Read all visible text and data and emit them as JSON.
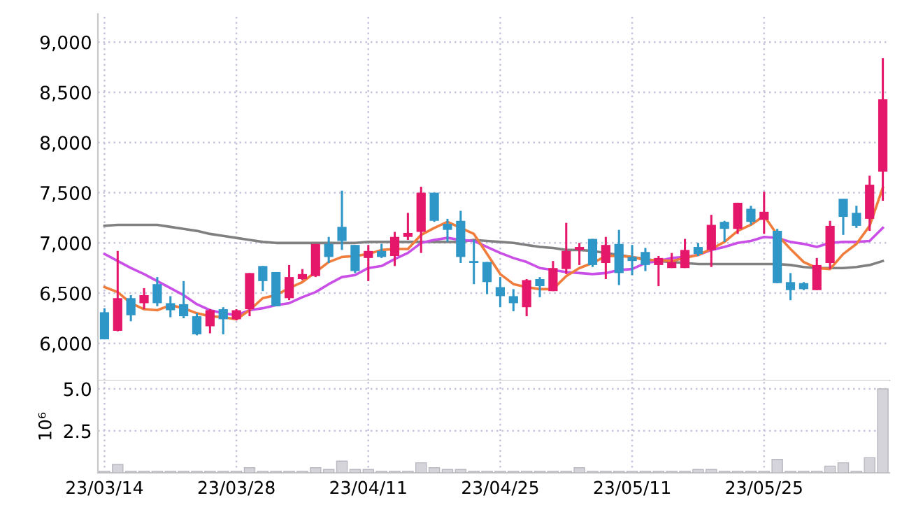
{
  "chart_data": [
    {
      "type": "candlestick",
      "ohlc": [
        [
          6310,
          6350,
          6040,
          6040
        ],
        [
          6125,
          6920,
          6120,
          6450
        ],
        [
          6450,
          6480,
          6220,
          6280
        ],
        [
          6400,
          6550,
          6340,
          6480
        ],
        [
          6590,
          6660,
          6370,
          6400
        ],
        [
          6400,
          6470,
          6260,
          6330
        ],
        [
          6390,
          6620,
          6250,
          6270
        ],
        [
          6270,
          6300,
          6080,
          6090
        ],
        [
          6170,
          6340,
          6100,
          6330
        ],
        [
          6340,
          6360,
          6090,
          6240
        ],
        [
          6240,
          6340,
          6230,
          6330
        ],
        [
          6340,
          6700,
          6270,
          6700
        ],
        [
          6770,
          6770,
          6520,
          6620
        ],
        [
          6710,
          6710,
          6370,
          6370
        ],
        [
          6450,
          6780,
          6430,
          6660
        ],
        [
          6640,
          6740,
          6630,
          6690
        ],
        [
          6670,
          6990,
          6660,
          6990
        ],
        [
          6990,
          7060,
          6800,
          6860
        ],
        [
          7160,
          7520,
          6930,
          7020
        ],
        [
          6980,
          6980,
          6700,
          6720
        ],
        [
          6850,
          6980,
          6620,
          6920
        ],
        [
          6920,
          6990,
          6850,
          6860
        ],
        [
          6870,
          7110,
          6770,
          7060
        ],
        [
          7060,
          7300,
          7030,
          7100
        ],
        [
          7110,
          7560,
          6900,
          7500
        ],
        [
          7500,
          7500,
          7210,
          7220
        ],
        [
          7190,
          7240,
          7010,
          7130
        ],
        [
          7220,
          7320,
          6800,
          6860
        ],
        [
          6820,
          7030,
          6590,
          6800
        ],
        [
          6810,
          6810,
          6490,
          6610
        ],
        [
          6560,
          6660,
          6360,
          6470
        ],
        [
          6470,
          6540,
          6320,
          6400
        ],
        [
          6360,
          6640,
          6270,
          6630
        ],
        [
          6640,
          6660,
          6460,
          6570
        ],
        [
          6520,
          6820,
          6520,
          6750
        ],
        [
          6740,
          7200,
          6690,
          6920
        ],
        [
          6930,
          7000,
          6780,
          6960
        ],
        [
          7040,
          7040,
          6760,
          6780
        ],
        [
          6800,
          7060,
          6640,
          6980
        ],
        [
          6990,
          7130,
          6580,
          6700
        ],
        [
          6860,
          6980,
          6680,
          6820
        ],
        [
          6910,
          6950,
          6720,
          6780
        ],
        [
          6780,
          6870,
          6570,
          6850
        ],
        [
          6750,
          6900,
          6750,
          6810
        ],
        [
          6750,
          7040,
          6750,
          6930
        ],
        [
          6960,
          7000,
          6870,
          6890
        ],
        [
          6930,
          7280,
          6760,
          7180
        ],
        [
          7210,
          7220,
          7010,
          7140
        ],
        [
          7140,
          7400,
          7090,
          7400
        ],
        [
          7340,
          7370,
          7180,
          7210
        ],
        [
          7230,
          7510,
          7090,
          7310
        ],
        [
          7120,
          7140,
          6600,
          6600
        ],
        [
          6610,
          6700,
          6430,
          6530
        ],
        [
          6600,
          6610,
          6530,
          6540
        ],
        [
          6530,
          6850,
          6530,
          6780
        ],
        [
          6800,
          7220,
          6740,
          7170
        ],
        [
          7440,
          7440,
          7080,
          7260
        ],
        [
          7300,
          7370,
          7150,
          7170
        ],
        [
          7240,
          7670,
          7120,
          7580
        ],
        [
          7710,
          8840,
          7420,
          8430
        ]
      ],
      "colors": [
        "#2f96c8",
        "#e5176a",
        "#2f96c8",
        "#e5176a",
        "#2f96c8",
        "#2f96c8",
        "#2f96c8",
        "#2f96c8",
        "#e5176a",
        "#2f96c8",
        "#e5176a",
        "#e5176a",
        "#2f96c8",
        "#2f96c8",
        "#e5176a",
        "#e5176a",
        "#e5176a",
        "#2f96c8",
        "#2f96c8",
        "#2f96c8",
        "#e5176a",
        "#2f96c8",
        "#e5176a",
        "#e5176a",
        "#e5176a",
        "#2f96c8",
        "#2f96c8",
        "#2f96c8",
        "#2f96c8",
        "#2f96c8",
        "#2f96c8",
        "#2f96c8",
        "#e5176a",
        "#2f96c8",
        "#e5176a",
        "#e5176a",
        "#e5176a",
        "#2f96c8",
        "#e5176a",
        "#2f96c8",
        "#2f96c8",
        "#2f96c8",
        "#e5176a",
        "#e5176a",
        "#e5176a",
        "#2f96c8",
        "#e5176a",
        "#2f96c8",
        "#e5176a",
        "#2f96c8",
        "#e5176a",
        "#2f96c8",
        "#2f96c8",
        "#2f96c8",
        "#e5176a",
        "#e5176a",
        "#2f96c8",
        "#2f96c8",
        "#e5176a",
        "#e5176a"
      ],
      "series": [
        {
          "type": "line",
          "color": "#808080",
          "values": [
            7170,
            7180,
            7180,
            7180,
            7180,
            7160,
            7140,
            7120,
            7090,
            7070,
            7050,
            7030,
            7010,
            7000,
            7000,
            7000,
            7000,
            7000,
            7000,
            7000,
            7010,
            7010,
            7010,
            7010,
            7010,
            7010,
            7010,
            7010,
            7030,
            7020,
            7010,
            7000,
            6980,
            6960,
            6950,
            6930,
            6930,
            6920,
            6900,
            6880,
            6860,
            6840,
            6820,
            6810,
            6800,
            6790,
            6790,
            6790,
            6790,
            6790,
            6790,
            6790,
            6780,
            6760,
            6750,
            6750,
            6750,
            6760,
            6780,
            6820
          ]
        },
        {
          "type": "line",
          "color": "#c94fe6",
          "values": [
            6890,
            6820,
            6750,
            6690,
            6620,
            6550,
            6480,
            6390,
            6330,
            6300,
            6280,
            6330,
            6350,
            6380,
            6400,
            6460,
            6510,
            6590,
            6660,
            6680,
            6750,
            6770,
            6840,
            6900,
            7000,
            7030,
            7050,
            7030,
            7020,
            6960,
            6900,
            6850,
            6810,
            6750,
            6730,
            6710,
            6700,
            6690,
            6700,
            6730,
            6740,
            6800,
            6820,
            6850,
            6860,
            6880,
            6930,
            6960,
            7000,
            7020,
            7060,
            7050,
            7010,
            6990,
            6960,
            7000,
            7010,
            7010,
            7020,
            7150
          ]
        },
        {
          "type": "line",
          "color": "#f07d3c",
          "values": [
            6560,
            6510,
            6400,
            6340,
            6330,
            6380,
            6350,
            6300,
            6270,
            6260,
            6240,
            6330,
            6450,
            6480,
            6550,
            6610,
            6710,
            6810,
            6860,
            6870,
            6890,
            6930,
            6940,
            6940,
            7080,
            7150,
            7210,
            7150,
            7090,
            6890,
            6690,
            6590,
            6560,
            6540,
            6540,
            6670,
            6750,
            6800,
            6870,
            6870,
            6860,
            6830,
            6830,
            6820,
            6850,
            6880,
            6940,
            7010,
            7120,
            7180,
            7270,
            7080,
            6940,
            6810,
            6750,
            6740,
            6890,
            6990,
            7170,
            7550
          ]
        }
      ],
      "ylim": [
        5630,
        9280
      ],
      "yticks": [
        {
          "value": 6000,
          "label": "6,000"
        },
        {
          "value": 6500,
          "label": "6,500"
        },
        {
          "value": 7000,
          "label": "7,000"
        },
        {
          "value": 7500,
          "label": "7,500"
        },
        {
          "value": 8000,
          "label": "8,000"
        },
        {
          "value": 8500,
          "label": "8,500"
        },
        {
          "value": 9000,
          "label": "9,000"
        }
      ],
      "grid": true,
      "tick_labels": "y"
    },
    {
      "type": "bar",
      "categories": [
        "23/03/14",
        null,
        null,
        null,
        null,
        null,
        null,
        null,
        null,
        null,
        "23/03/28",
        null,
        null,
        null,
        null,
        null,
        null,
        null,
        null,
        null,
        "23/04/11",
        null,
        null,
        null,
        null,
        null,
        null,
        null,
        null,
        null,
        "23/04/25",
        null,
        null,
        null,
        null,
        null,
        null,
        null,
        null,
        null,
        "23/05/11",
        null,
        null,
        null,
        null,
        null,
        null,
        null,
        null,
        null,
        "23/05/25",
        null,
        null,
        null,
        null,
        null,
        null,
        null,
        null,
        null
      ],
      "values": [
        0.1,
        0.5,
        0.1,
        0.1,
        0.1,
        0.1,
        0.1,
        0.1,
        0.1,
        0.1,
        0.1,
        0.3,
        0.1,
        0.1,
        0.1,
        0.1,
        0.3,
        0.2,
        0.7,
        0.2,
        0.2,
        0.1,
        0.1,
        0.1,
        0.6,
        0.3,
        0.2,
        0.2,
        0.1,
        0.1,
        0.1,
        0.1,
        0.1,
        0.1,
        0.1,
        0.1,
        0.3,
        0.1,
        0.1,
        0.1,
        0.1,
        0.1,
        0.1,
        0.1,
        0.1,
        0.2,
        0.2,
        0.1,
        0.1,
        0.1,
        0.1,
        0.8,
        0.1,
        0.1,
        0.1,
        0.4,
        0.6,
        0.1,
        0.9,
        5.0
      ],
      "color": "#d4d4da",
      "ylabel": "10⁶",
      "ylim": [
        0,
        5.5
      ],
      "yticks": [
        {
          "value": 2.5,
          "label": "2.5"
        },
        {
          "value": 5.0,
          "label": "5.0"
        }
      ],
      "grid": true
    }
  ]
}
